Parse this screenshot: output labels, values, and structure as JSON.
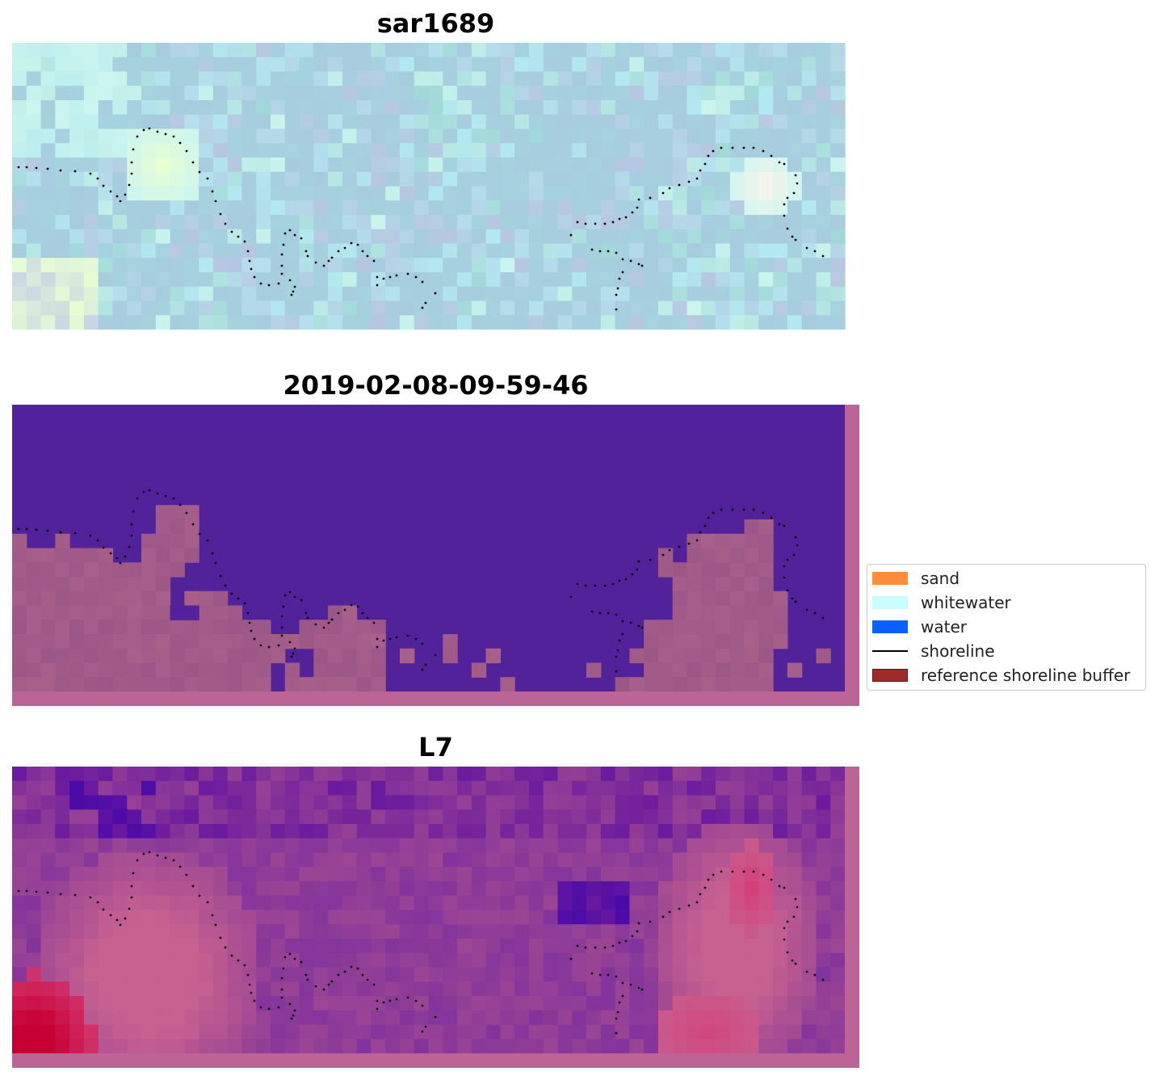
{
  "chart_data": [
    {
      "type": "heatmap",
      "title": "sar1689",
      "kind": "rgb-composite",
      "extent": "plot-only",
      "shoreline": "dotted",
      "colors": [
        "#e8ffd2",
        "#ccf5ee",
        "#b2eaf0",
        "#a6d4e0",
        "#a8c8dd",
        "#b6c6e0",
        "#c8d4e4",
        "#9fd8d8",
        "#fef5ec"
      ]
    },
    {
      "type": "heatmap",
      "title": "2019-02-08-09-59-46",
      "kind": "classification",
      "extent": "with-buffer-border",
      "shoreline": "dotted",
      "colors": [
        "#52229a",
        "#9b5787",
        "#a85f8a",
        "#b8628e",
        "#bd6496"
      ]
    },
    {
      "type": "heatmap",
      "title": "L7",
      "kind": "rgb-composite",
      "extent": "with-buffer-border",
      "shoreline": "dotted",
      "colors": [
        "#4a0aa8",
        "#6a1a9e",
        "#83349c",
        "#9b4594",
        "#b0528e",
        "#c76190",
        "#d4407a",
        "#c70034"
      ]
    }
  ],
  "legend": {
    "placement": "center-right",
    "items": [
      {
        "label": "sand",
        "color": "#ff8c3a",
        "kind": "patch"
      },
      {
        "label": "whitewater",
        "color": "#c8fcfd",
        "kind": "patch"
      },
      {
        "label": "water",
        "color": "#0a5ffe",
        "kind": "patch"
      },
      {
        "label": "shoreline",
        "color": "#000000",
        "kind": "line"
      },
      {
        "label": "reference shoreline buffer",
        "color": "#9f2a2a",
        "kind": "patch"
      }
    ]
  }
}
